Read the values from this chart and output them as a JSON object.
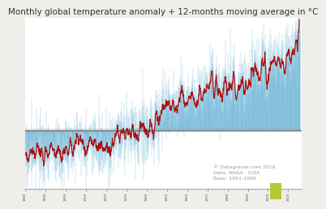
{
  "title": "Monthly global temperature anomaly + 12-months moving average in °C",
  "title_fontsize": 7.5,
  "background_color": "#f0eeea",
  "plot_bg_color": "#ffffff",
  "monthly_color": "#6ab4d8",
  "moving_avg_color": "#aa1111",
  "zero_line_color": "#555555",
  "annotation_text": "© Datagraver.com 2016\nData: NASA - GISS\nBase: 1951-1980",
  "annotation_fontsize": 4.5,
  "annotation_color": "#999999",
  "year_start": 1880,
  "year_end": 2016,
  "ylim": [
    -0.65,
    1.25
  ],
  "xlim": [
    1880,
    2016.5
  ]
}
